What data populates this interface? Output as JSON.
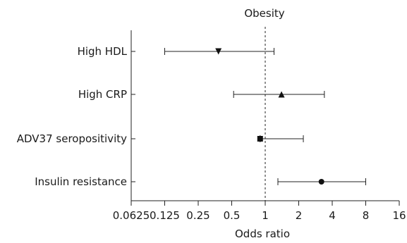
{
  "chart_data": {
    "type": "forest",
    "title": "Obesity",
    "xlabel": "Odds ratio",
    "x_scale": "log2",
    "xlim": [
      0.0625,
      16
    ],
    "x_ticks": [
      "0.0625",
      "0.125",
      "0.25",
      "0.5",
      "1",
      "2",
      "4",
      "8",
      "16"
    ],
    "reference_line": 1,
    "grid": false,
    "rows": [
      {
        "label": "High HDL",
        "estimate": 0.38,
        "ci_low": 0.125,
        "ci_high": 1.2,
        "marker": "triangle-down"
      },
      {
        "label": "High CRP",
        "estimate": 1.4,
        "ci_low": 0.52,
        "ci_high": 3.4,
        "marker": "triangle-up"
      },
      {
        "label": "ADV37 seropositivity",
        "estimate": 0.9,
        "ci_low": 0.9,
        "ci_high": 2.2,
        "marker": "square"
      },
      {
        "label": "Insulin resistance",
        "estimate": 3.2,
        "ci_low": 1.3,
        "ci_high": 8.0,
        "marker": "circle"
      }
    ]
  }
}
